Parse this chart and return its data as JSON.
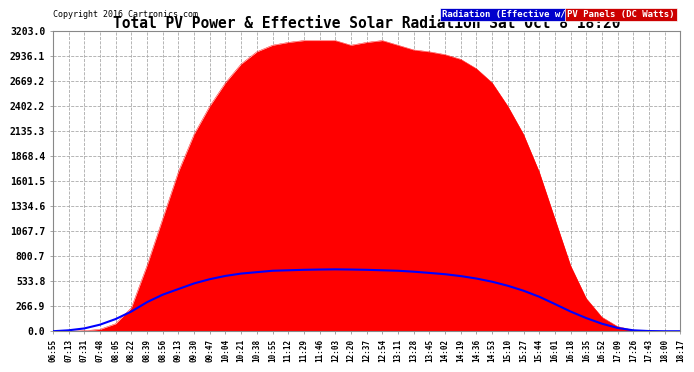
{
  "title": "Total PV Power & Effective Solar Radiation Sat Oct 8 18:20",
  "copyright": "Copyright 2016 Cartronics.com",
  "legend_radiation": "Radiation (Effective w/m2)",
  "legend_pv": "PV Panels (DC Watts)",
  "bg_color": "#ffffff",
  "plot_bg_color": "#ffffff",
  "grid_color": "#aaaaaa",
  "title_color": "#000000",
  "radiation_color": "#0000ff",
  "pv_color": "#ff0000",
  "yticks": [
    0.0,
    266.9,
    533.8,
    800.7,
    1067.7,
    1334.6,
    1601.5,
    1868.4,
    2135.3,
    2402.2,
    2669.2,
    2936.1,
    3203.0
  ],
  "ymax": 3203.0,
  "time_labels": [
    "06:55",
    "07:13",
    "07:31",
    "07:48",
    "08:05",
    "08:22",
    "08:39",
    "08:56",
    "09:13",
    "09:30",
    "09:47",
    "10:04",
    "10:21",
    "10:38",
    "10:55",
    "11:12",
    "11:29",
    "11:46",
    "12:03",
    "12:20",
    "12:37",
    "12:54",
    "13:11",
    "13:28",
    "13:45",
    "14:02",
    "14:19",
    "14:36",
    "14:53",
    "15:10",
    "15:27",
    "15:44",
    "16:01",
    "16:18",
    "16:35",
    "16:52",
    "17:09",
    "17:26",
    "17:43",
    "18:00",
    "18:17"
  ],
  "pv_values": [
    0,
    0,
    5,
    20,
    80,
    250,
    700,
    1200,
    1700,
    2100,
    2400,
    2650,
    2850,
    2980,
    3050,
    3080,
    3100,
    3100,
    3100,
    3050,
    3080,
    3100,
    3050,
    3000,
    2980,
    2950,
    2900,
    2800,
    2650,
    2400,
    2100,
    1700,
    1200,
    700,
    350,
    150,
    50,
    10,
    2,
    0,
    0
  ],
  "radiation_values_scaled": [
    0,
    10,
    30,
    70,
    130,
    210,
    310,
    390,
    450,
    510,
    555,
    590,
    615,
    630,
    645,
    650,
    655,
    658,
    660,
    658,
    655,
    650,
    645,
    635,
    622,
    608,
    588,
    562,
    528,
    485,
    432,
    368,
    290,
    210,
    140,
    80,
    35,
    10,
    2,
    0,
    0
  ]
}
